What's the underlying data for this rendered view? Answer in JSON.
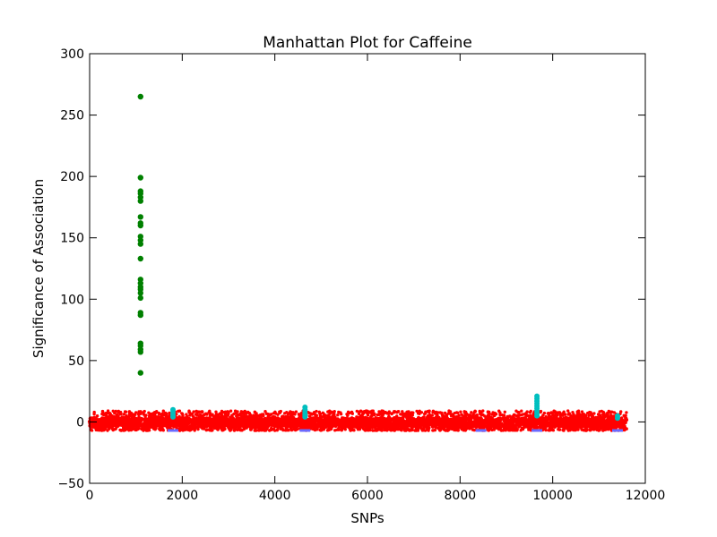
{
  "chart_data": {
    "type": "scatter",
    "title": "Manhattan Plot for Caffeine",
    "xlabel": "SNPs",
    "ylabel": "Significance of Association",
    "xlim": [
      0,
      12000
    ],
    "ylim": [
      -50,
      300
    ],
    "x_ticks": [
      "0",
      "2000",
      "4000",
      "6000",
      "8000",
      "10000",
      "12000"
    ],
    "y_ticks": [
      "−50",
      "0",
      "50",
      "100",
      "150",
      "200",
      "250",
      "300"
    ],
    "grid": false,
    "legend": "none",
    "colors": {
      "baseline": "#ff0000",
      "cluster": "#00bfbf",
      "strong_hits": "#008000",
      "negative": "#6a6aff",
      "marker": "#ffa500"
    },
    "series": [
      {
        "color": "#ff0000",
        "note_x_range": [
          0,
          11600
        ],
        "y_range": [
          -7,
          9
        ]
      },
      {
        "color": "#008000",
        "points": [
          [
            1100,
            265
          ],
          [
            1100,
            199
          ],
          [
            1100,
            188
          ],
          [
            1100,
            186
          ],
          [
            1100,
            183
          ],
          [
            1100,
            180
          ],
          [
            1100,
            167
          ],
          [
            1100,
            162
          ],
          [
            1100,
            160
          ],
          [
            1100,
            151
          ],
          [
            1100,
            148
          ],
          [
            1100,
            145
          ],
          [
            1100,
            133
          ],
          [
            1100,
            116
          ],
          [
            1100,
            113
          ],
          [
            1100,
            110
          ],
          [
            1100,
            108
          ],
          [
            1100,
            105
          ],
          [
            1100,
            101
          ],
          [
            1100,
            89
          ],
          [
            1100,
            87
          ],
          [
            1100,
            64
          ],
          [
            1100,
            62
          ],
          [
            1100,
            59
          ],
          [
            1100,
            57
          ],
          [
            1100,
            40
          ]
        ]
      },
      {
        "color": "#00bfbf",
        "points": [
          [
            1800,
            10
          ],
          [
            1800,
            8
          ],
          [
            1800,
            6
          ],
          [
            1800,
            4
          ],
          [
            4650,
            12
          ],
          [
            4650,
            10
          ],
          [
            4650,
            8
          ],
          [
            4650,
            6
          ],
          [
            4650,
            4
          ],
          [
            9660,
            21
          ],
          [
            9660,
            19
          ],
          [
            9660,
            17
          ],
          [
            9660,
            15
          ],
          [
            9660,
            13
          ],
          [
            9660,
            11
          ],
          [
            9660,
            9
          ],
          [
            9660,
            7
          ],
          [
            9660,
            5
          ],
          [
            11400,
            5
          ],
          [
            11400,
            3
          ]
        ]
      },
      {
        "color": "#6a6aff",
        "points": [
          [
            1800,
            -7
          ],
          [
            4650,
            -7
          ],
          [
            8450,
            -7
          ],
          [
            9660,
            -7
          ],
          [
            11400,
            -7
          ]
        ]
      }
    ]
  }
}
